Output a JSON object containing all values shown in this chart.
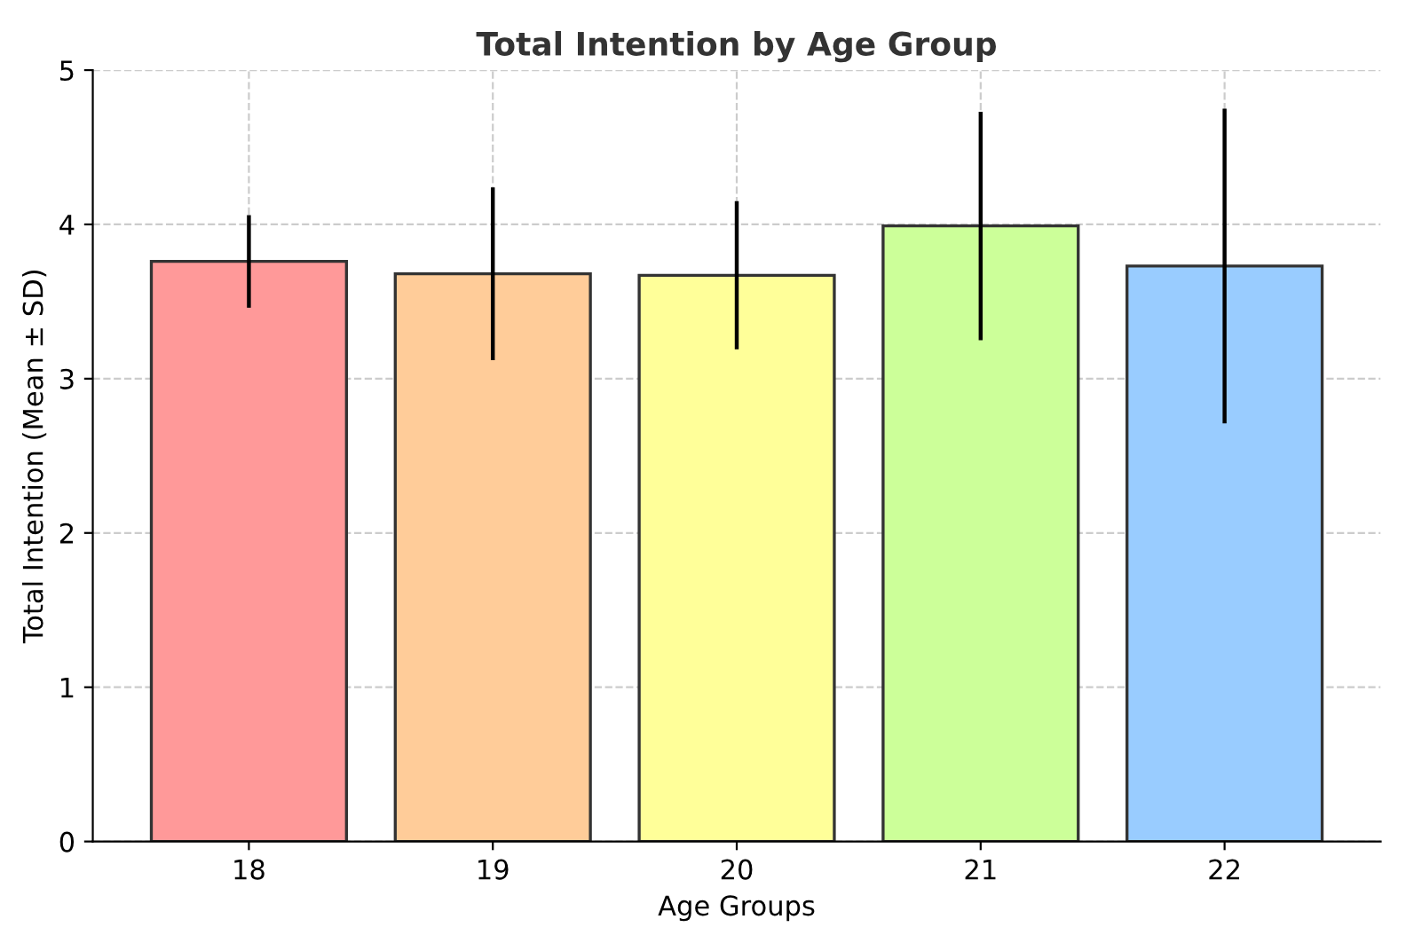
{
  "chart_data": {
    "type": "bar",
    "title": "Total Intention by Age Group",
    "xlabel": "Age Groups",
    "ylabel": "Total Intention (Mean ± SD)",
    "categories": [
      "18",
      "19",
      "20",
      "21",
      "22"
    ],
    "values": [
      3.76,
      3.68,
      3.67,
      3.99,
      3.73
    ],
    "errors": [
      0.3,
      0.56,
      0.48,
      0.74,
      1.02
    ],
    "colors": [
      "#ff9999",
      "#ffcc99",
      "#ffff99",
      "#ccff99",
      "#99ccff"
    ],
    "ylim": [
      0,
      5
    ],
    "yticks": [
      0,
      1,
      2,
      3,
      4,
      5
    ],
    "grid": true
  }
}
